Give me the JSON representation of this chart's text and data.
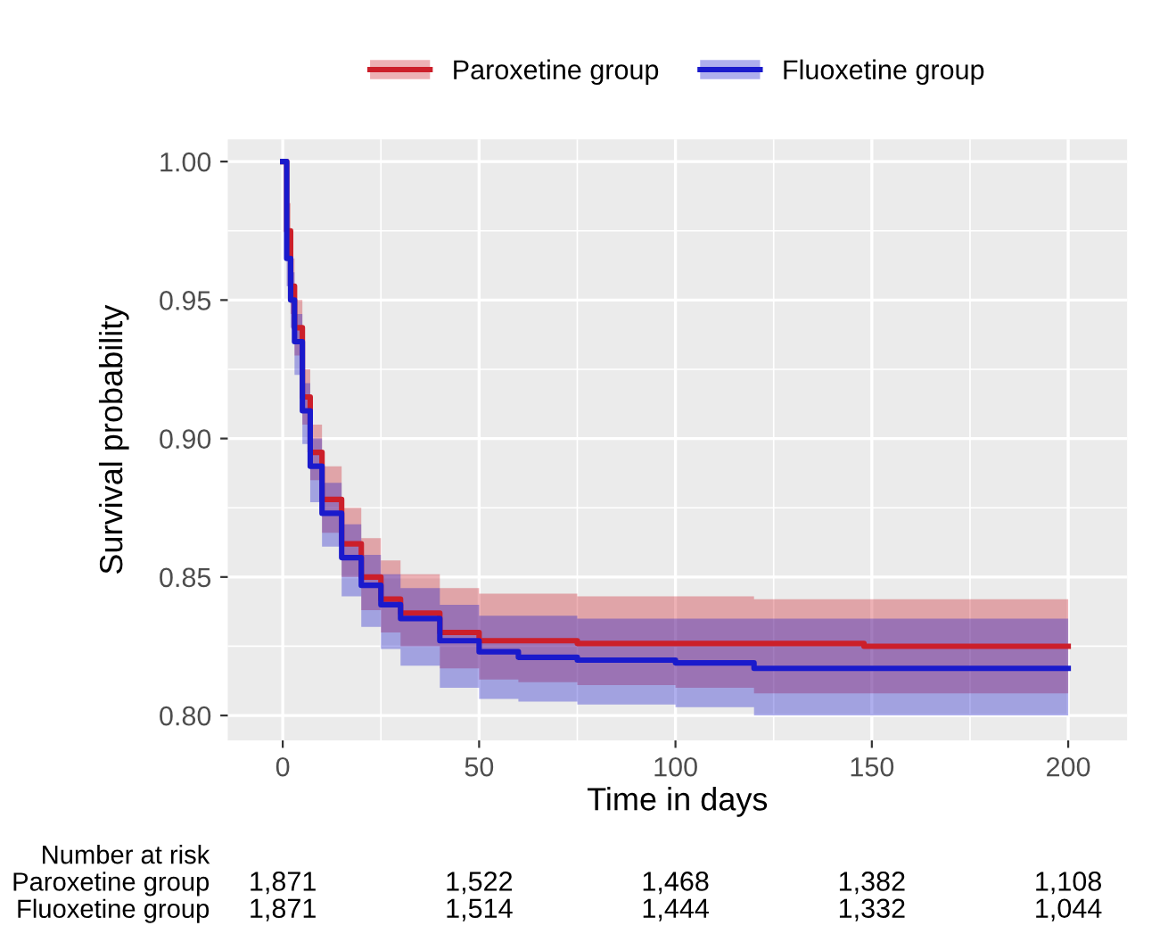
{
  "chart_data": {
    "type": "step",
    "xlabel": "Time in days",
    "ylabel": "Survival probability",
    "xlim": [
      -14,
      215
    ],
    "xticks": [
      0,
      50,
      100,
      150,
      200
    ],
    "ylim": [
      0.791,
      1.008
    ],
    "yticks": [
      {
        "value": 0.8,
        "label": "0.80"
      },
      {
        "value": 0.85,
        "label": "0.85"
      },
      {
        "value": 0.9,
        "label": "0.90"
      },
      {
        "value": 0.95,
        "label": "0.95"
      },
      {
        "value": 1.0,
        "label": "1.00"
      }
    ],
    "grid": true,
    "legend": "top",
    "line_style": "solid",
    "marker": "none",
    "x": [
      0,
      1,
      2,
      3,
      5,
      7,
      10,
      15,
      20,
      25,
      30,
      40,
      50,
      60,
      75,
      100,
      110,
      120,
      148,
      200
    ],
    "series": [
      {
        "name": "Paroxetine group",
        "color": "#cc1f2a",
        "values": [
          1.0,
          0.975,
          0.955,
          0.94,
          0.915,
          0.895,
          0.878,
          0.862,
          0.85,
          0.842,
          0.837,
          0.83,
          0.827,
          0.827,
          0.826,
          0.826,
          0.826,
          0.826,
          0.825,
          0.825
        ],
        "upper": [
          1.0,
          0.985,
          0.965,
          0.95,
          0.925,
          0.905,
          0.89,
          0.875,
          0.864,
          0.856,
          0.851,
          0.846,
          0.844,
          0.844,
          0.843,
          0.843,
          0.843,
          0.842,
          0.842,
          0.842
        ],
        "lower": [
          1.0,
          0.965,
          0.945,
          0.93,
          0.905,
          0.885,
          0.866,
          0.85,
          0.838,
          0.83,
          0.825,
          0.817,
          0.813,
          0.812,
          0.811,
          0.81,
          0.81,
          0.808,
          0.808,
          0.808
        ]
      },
      {
        "name": "Fluoxetine group",
        "color": "#1a1acc",
        "values": [
          1.0,
          0.965,
          0.95,
          0.935,
          0.91,
          0.89,
          0.873,
          0.857,
          0.847,
          0.84,
          0.835,
          0.827,
          0.823,
          0.821,
          0.82,
          0.819,
          0.819,
          0.817,
          0.817,
          0.817
        ],
        "upper": [
          1.0,
          0.975,
          0.96,
          0.945,
          0.92,
          0.9,
          0.884,
          0.869,
          0.858,
          0.851,
          0.846,
          0.84,
          0.836,
          0.836,
          0.835,
          0.835,
          0.835,
          0.835,
          0.835,
          0.835
        ],
        "lower": [
          1.0,
          0.955,
          0.94,
          0.923,
          0.898,
          0.877,
          0.861,
          0.843,
          0.832,
          0.824,
          0.818,
          0.81,
          0.806,
          0.805,
          0.804,
          0.803,
          0.803,
          0.8,
          0.8,
          0.8
        ]
      }
    ],
    "annotations": [
      "Number at risk",
      "Paroxetine group",
      "1,871",
      "1,522",
      "1,468",
      "1,382",
      "1,108",
      "Fluoxetine group",
      "1,871",
      "1,514",
      "1,444",
      "1,332",
      "1,044"
    ]
  }
}
